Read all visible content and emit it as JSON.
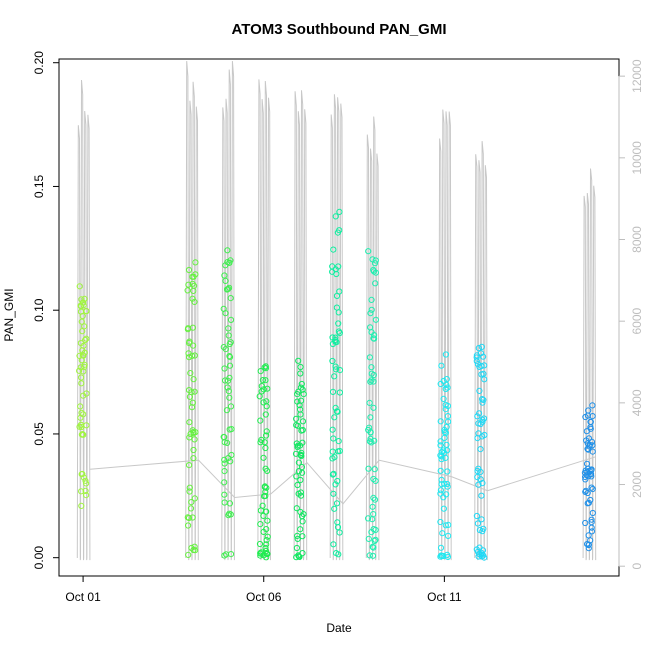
{
  "chart_data": {
    "type": "scatter",
    "title": "ATOM3 Southbound PAN_GMI",
    "xlabel": "Date",
    "ylabel": "PAN_GMI",
    "xlim": [
      "2016-09-30T08:00",
      "2016-10-15T20:00"
    ],
    "ylim": [
      -0.0074,
      0.2015
    ],
    "x_ticks": [
      {
        "label": "Oct 01",
        "value": "2016-10-01"
      },
      {
        "label": "Oct 06",
        "value": "2016-10-06"
      },
      {
        "label": "Oct 11",
        "value": "2016-10-11"
      }
    ],
    "y_ticks": [
      {
        "label": "0.00",
        "value": 0.0
      },
      {
        "label": "0.05",
        "value": 0.05
      },
      {
        "label": "0.10",
        "value": 0.1
      },
      {
        "label": "0.15",
        "value": 0.15
      },
      {
        "label": "0.20",
        "value": 0.2
      }
    ],
    "secondary_axis": {
      "side": "right",
      "color": "#bebebe",
      "ylim": [
        -240,
        12420
      ],
      "ticks": [
        0,
        2000,
        4000,
        6000,
        8000,
        10000,
        12000
      ]
    },
    "flights": [
      {
        "date": "2016-10-01",
        "color": "#a0f540",
        "y_center": 0.065,
        "y_spread": 0.045,
        "alt_max": 12000
      },
      {
        "date": "2016-10-04",
        "color": "#66f040",
        "y_center": 0.06,
        "y_spread": 0.06,
        "alt_max": 12500
      },
      {
        "date": "2016-10-05",
        "color": "#40ee50",
        "y_center": 0.06,
        "y_spread": 0.065,
        "alt_max": 12400
      },
      {
        "date": "2016-10-06",
        "color": "#20ec50",
        "y_center": 0.035,
        "y_spread": 0.045,
        "alt_max": 12400
      },
      {
        "date": "2016-10-07",
        "color": "#10e860",
        "y_center": 0.035,
        "y_spread": 0.045,
        "alt_max": 12000
      },
      {
        "date": "2016-10-08",
        "color": "#10eea0",
        "y_center": 0.07,
        "y_spread": 0.07,
        "alt_max": 12000
      },
      {
        "date": "2016-10-09",
        "color": "#20eeb0",
        "y_center": 0.065,
        "y_spread": 0.065,
        "alt_max": 11200
      },
      {
        "date": "2016-10-11",
        "color": "#20e8f0",
        "y_center": 0.04,
        "y_spread": 0.045,
        "alt_max": 11500
      },
      {
        "date": "2016-10-12",
        "color": "#20d8f5",
        "y_center": 0.04,
        "y_spread": 0.05,
        "alt_max": 10800
      },
      {
        "date": "2016-10-15",
        "color": "#2090e8",
        "y_center": 0.033,
        "y_spread": 0.03,
        "alt_max": 9900
      }
    ]
  }
}
